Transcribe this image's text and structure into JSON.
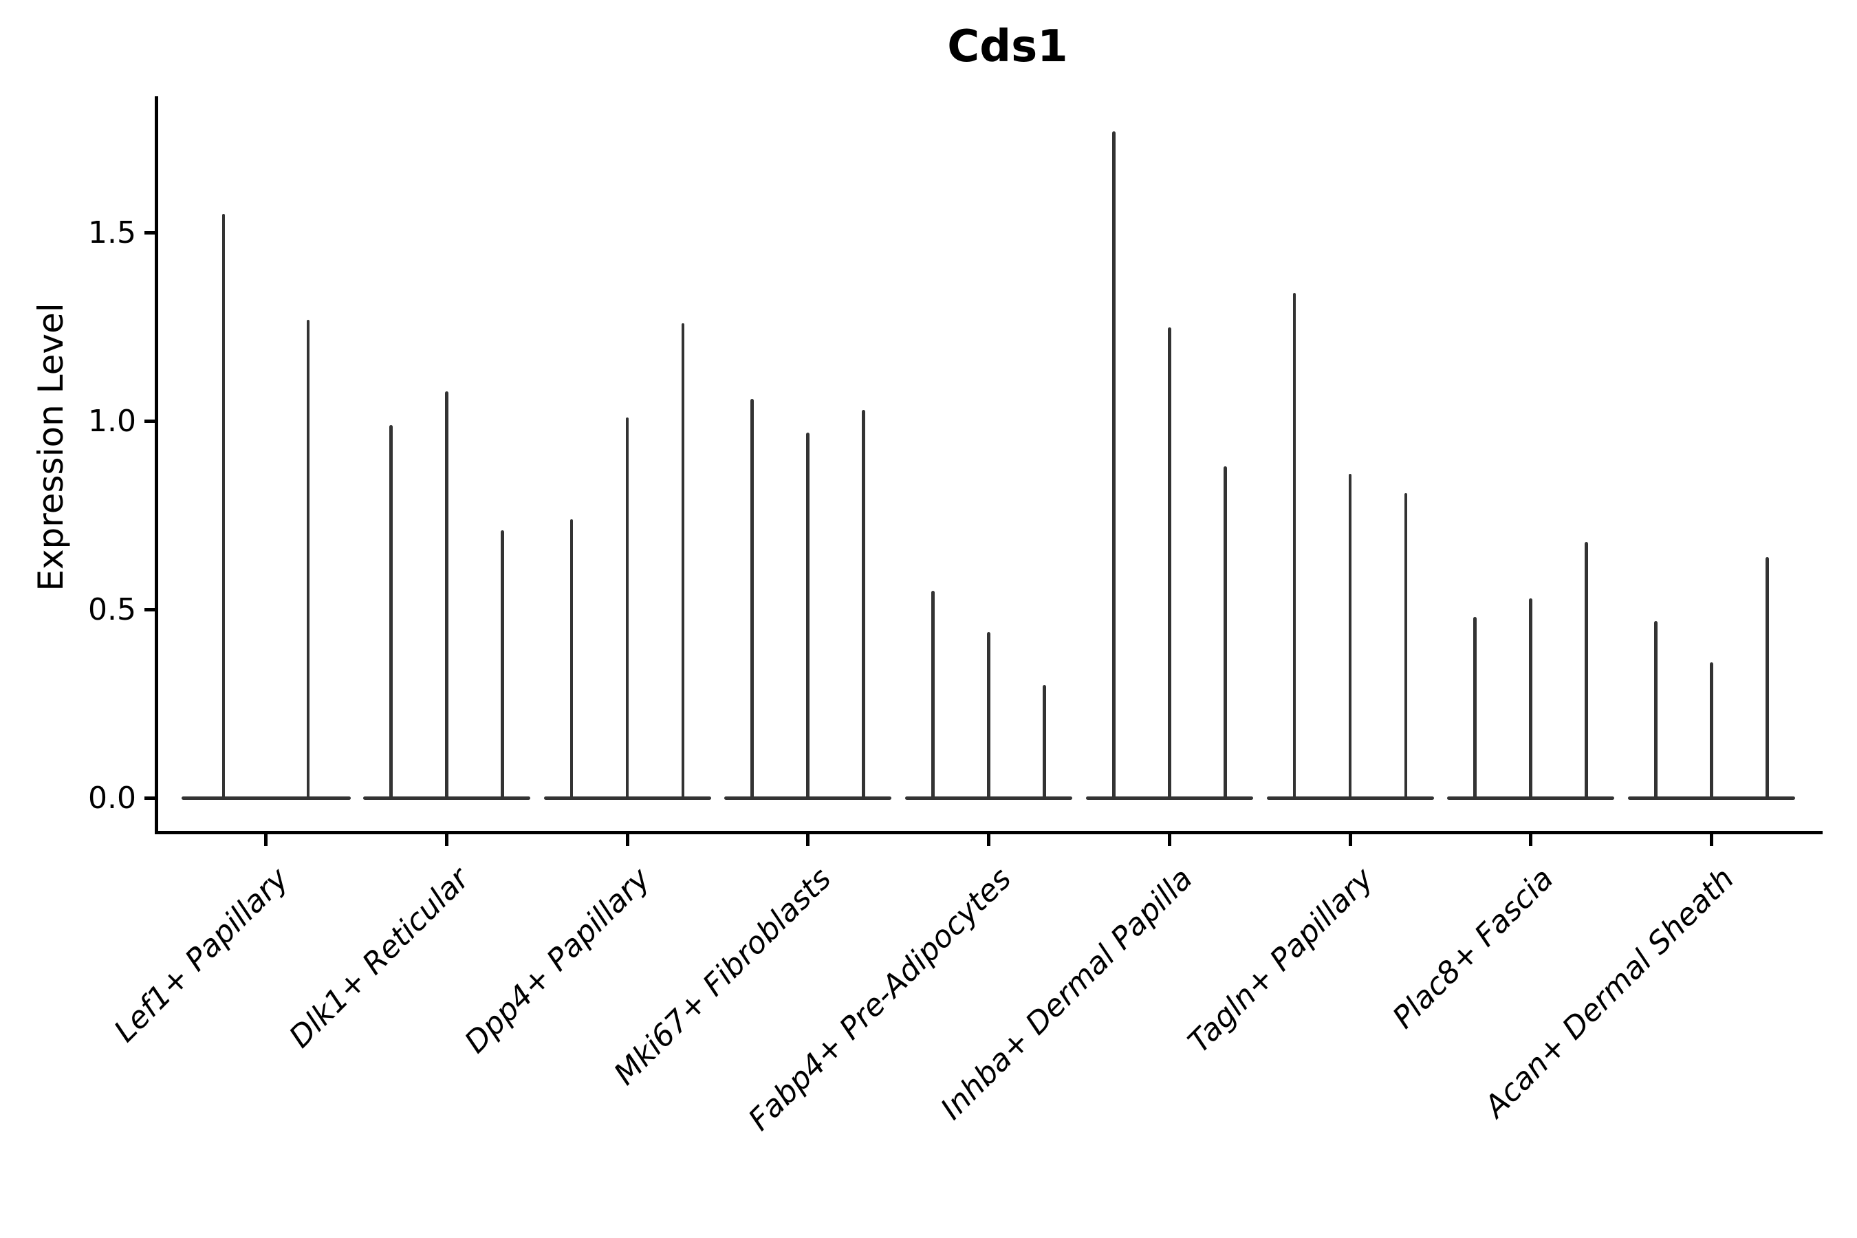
{
  "figure": {
    "title": "Cds1",
    "ylabel": "Expression Level"
  },
  "colors": {
    "background": "#ffffff",
    "axis": "#000000",
    "text": "#000000",
    "violin": "#333333"
  },
  "chart_data": {
    "type": "violin",
    "title": "Cds1",
    "xlabel": "",
    "ylabel": "Expression Level",
    "ylim": [
      -0.09,
      1.86
    ],
    "grid": false,
    "legend": "none",
    "yticks": [
      {
        "label": "0.0",
        "value": 0.0
      },
      {
        "label": "0.5",
        "value": 0.5
      },
      {
        "label": "1.0",
        "value": 1.0
      },
      {
        "label": "1.5",
        "value": 1.5
      }
    ],
    "categories": [
      "Lef1+ Papillary",
      "Dlk1+ Reticular",
      "Dpp4+ Papillary",
      "Mki67+ Fibroblasts",
      "Fabp4+ Pre-Adipocytes",
      "Inhba+ Dermal Papilla",
      "Tagln+ Papillary",
      "Plac8+ Fascia",
      "Acan+ Dermal Sheath"
    ],
    "series_note": "each category holds the peak Expression Level of its thin violins, left to right",
    "values": [
      [
        1.55,
        1.27
      ],
      [
        0.99,
        1.08,
        0.71
      ],
      [
        0.74,
        1.01,
        1.26
      ],
      [
        1.06,
        0.97,
        1.03
      ],
      [
        0.55,
        0.44,
        0.3
      ],
      [
        1.77,
        1.25,
        0.88
      ],
      [
        1.34,
        0.86,
        0.81
      ],
      [
        0.48,
        0.53,
        0.68
      ],
      [
        0.47,
        0.36,
        0.64
      ]
    ]
  }
}
